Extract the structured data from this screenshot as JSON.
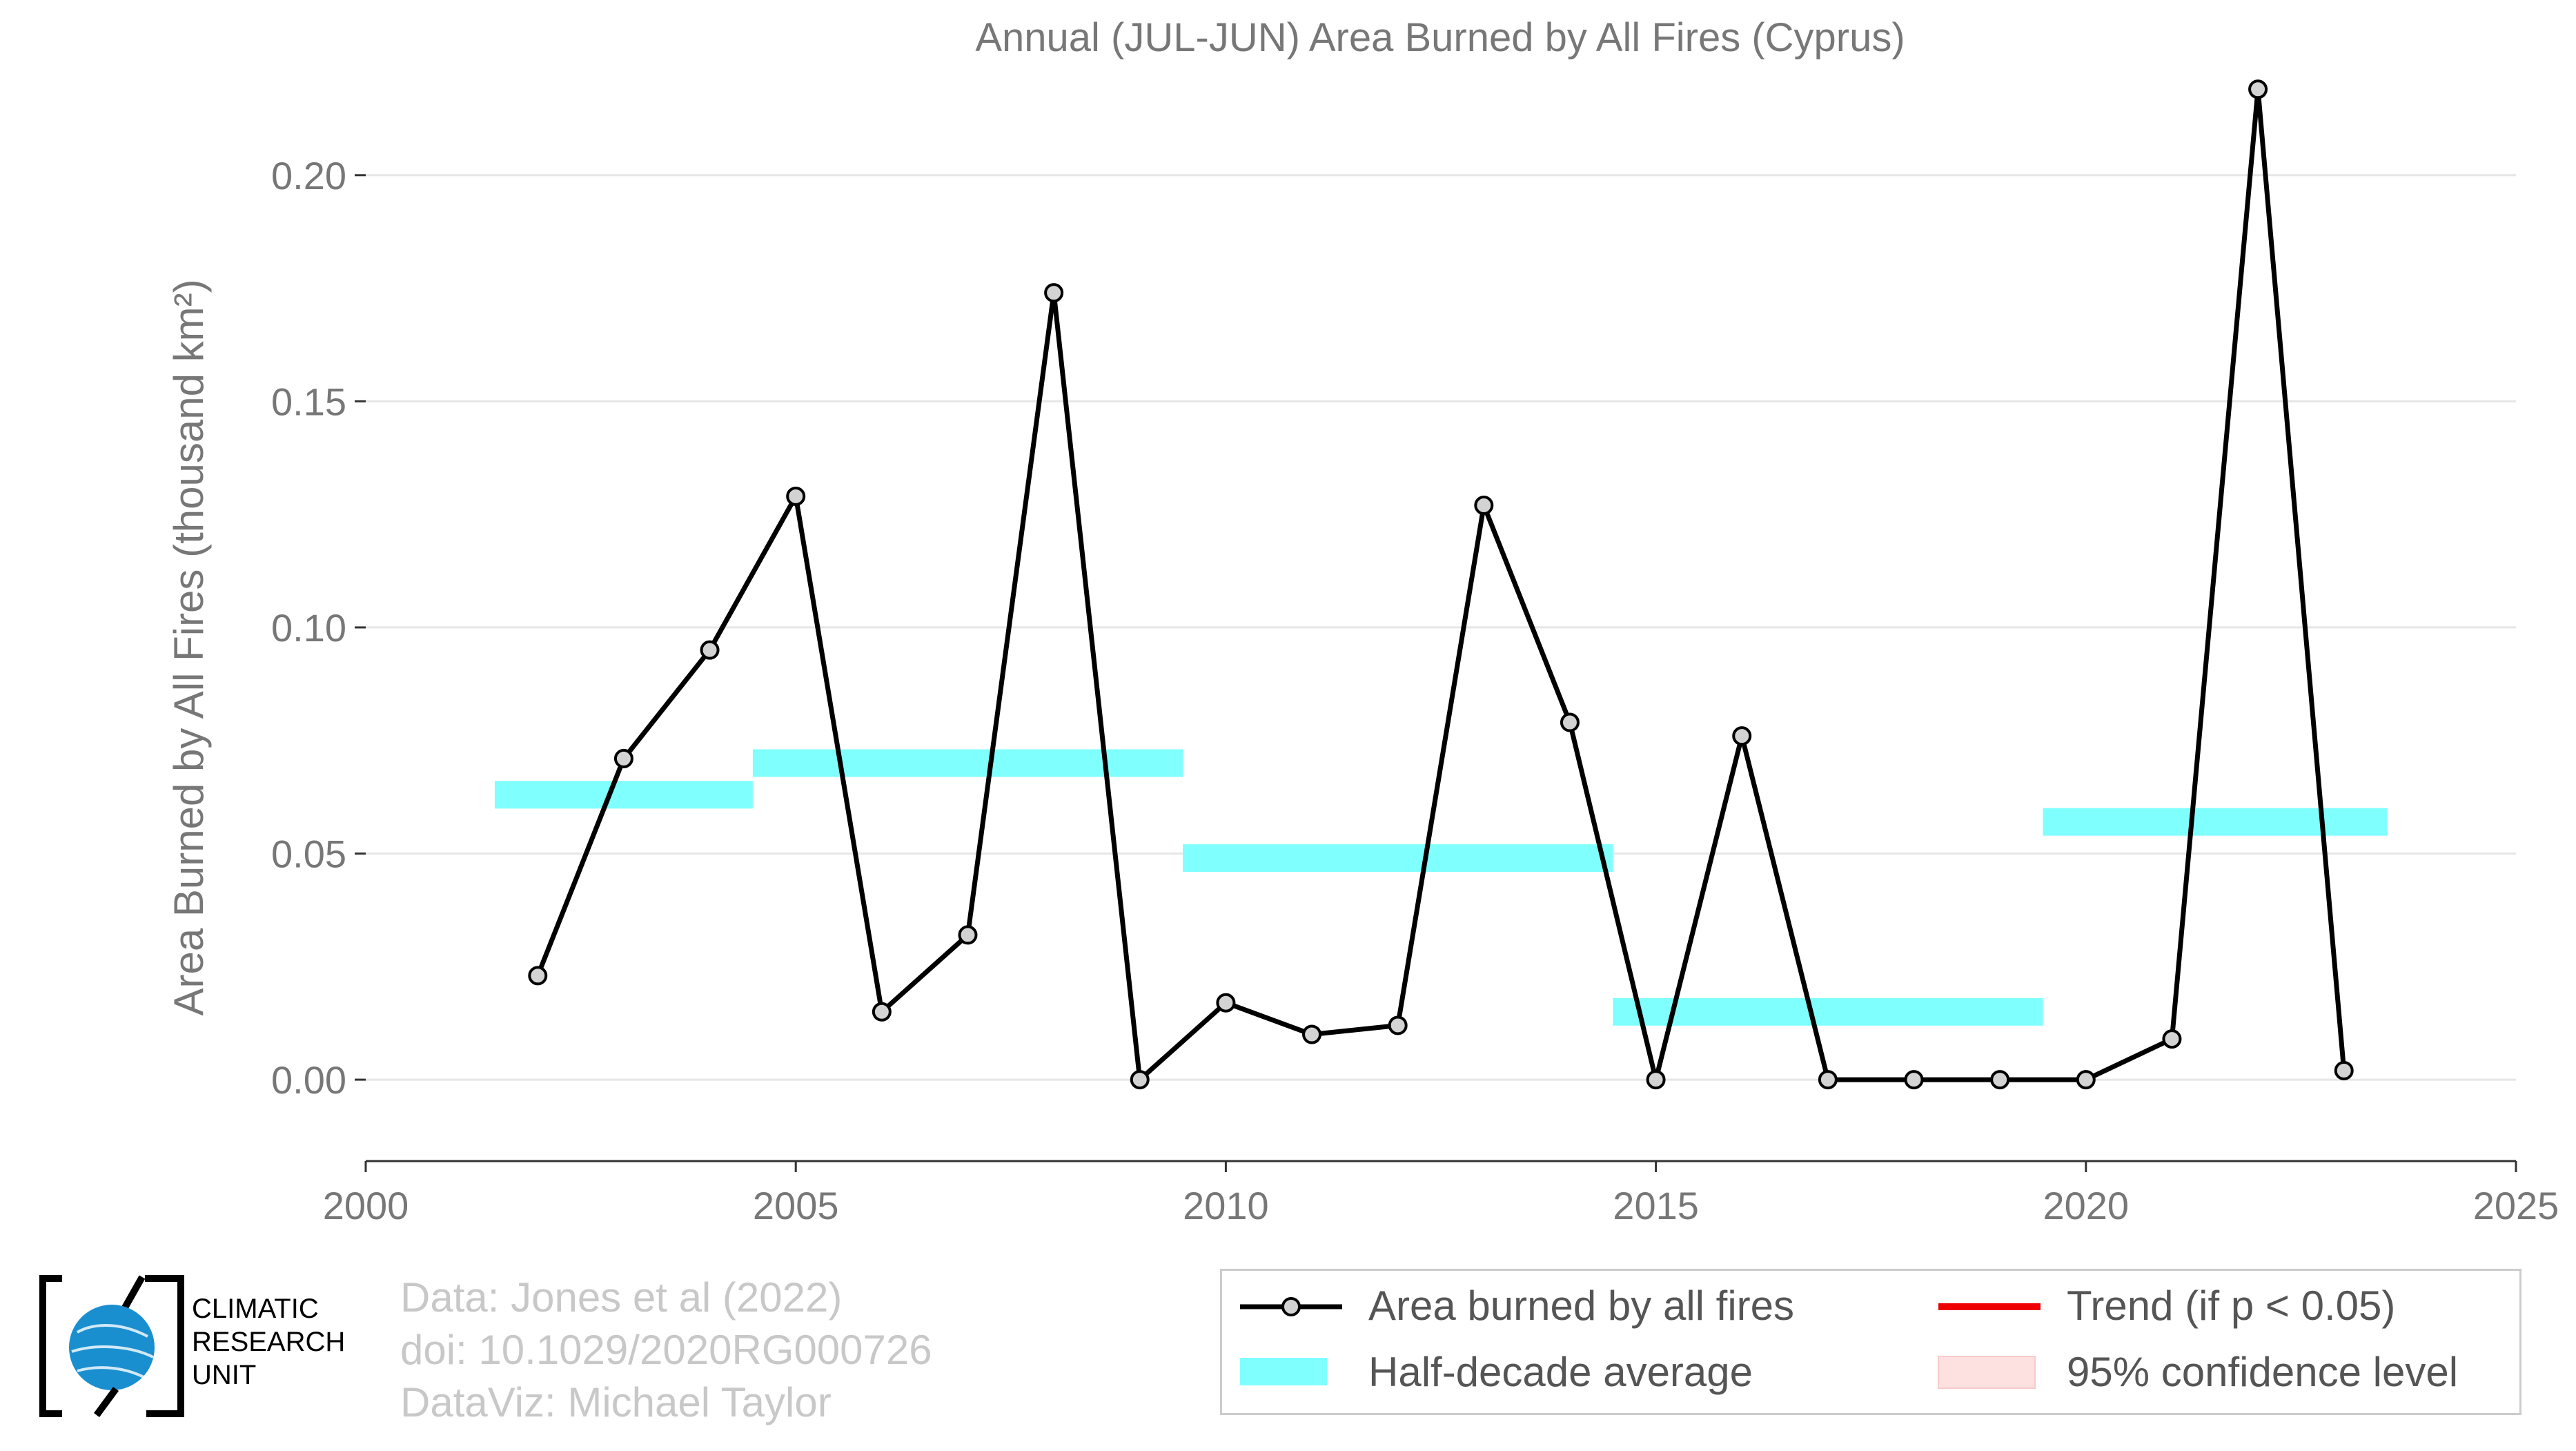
{
  "chart_data": {
    "type": "line",
    "title": "Annual (JUL-JUN) Area Burned by All Fires (Cyprus)",
    "ylabel": "Area Burned by All Fires (thousand km²)",
    "xlabel": "",
    "xlim": [
      2000,
      2025
    ],
    "ylim": [
      -0.018,
      0.225
    ],
    "x_ticks": [
      2000,
      2005,
      2010,
      2015,
      2020,
      2025
    ],
    "y_ticks": [
      0.0,
      0.05,
      0.1,
      0.15,
      0.2
    ],
    "y_tick_labels": [
      "0.00",
      "0.05",
      "0.10",
      "0.15",
      "0.20"
    ],
    "grid": "horizontal",
    "series": [
      {
        "name": "Area burned by all fires",
        "color": "#000000",
        "x": [
          2002,
          2003,
          2004,
          2005,
          2006,
          2007,
          2008,
          2009,
          2010,
          2011,
          2012,
          2013,
          2014,
          2015,
          2016,
          2017,
          2018,
          2019,
          2020,
          2021,
          2022,
          2023
        ],
        "values": [
          0.023,
          0.071,
          0.095,
          0.129,
          0.015,
          0.032,
          0.174,
          0.0,
          0.017,
          0.01,
          0.012,
          0.127,
          0.079,
          0.0,
          0.076,
          0.0,
          0.0,
          0.0,
          0.0,
          0.009,
          0.219,
          0.002
        ]
      }
    ],
    "half_decade_averages": {
      "name": "Half-decade average",
      "color": "#80ffff",
      "segments": [
        {
          "x_start": 2001.5,
          "x_end": 2004.5,
          "value": 0.063
        },
        {
          "x_start": 2004.5,
          "x_end": 2009.5,
          "value": 0.07
        },
        {
          "x_start": 2009.5,
          "x_end": 2014.5,
          "value": 0.049
        },
        {
          "x_start": 2014.5,
          "x_end": 2019.5,
          "value": 0.015
        },
        {
          "x_start": 2019.5,
          "x_end": 2023.5,
          "value": 0.057
        }
      ]
    },
    "legend": {
      "placement": "bottom-right",
      "items": [
        {
          "label": "Area burned by all fires",
          "color": "#000000"
        },
        {
          "label": "Trend (if p < 0.05)",
          "color": "#ee0000"
        },
        {
          "label": "Half-decade average",
          "color": "#80ffff"
        },
        {
          "label": "95% confidence level",
          "color": "#fde0e0"
        }
      ]
    }
  },
  "credits": {
    "line1": "Data: Jones et al (2022)",
    "line2": "doi: 10.1029/2020RG000726",
    "line3": "DataViz: Michael Taylor"
  },
  "logo": {
    "line1": "CLIMATIC",
    "line2": "RESEARCH",
    "line3": "UNIT",
    "globe_color": "#1a8fd0"
  }
}
